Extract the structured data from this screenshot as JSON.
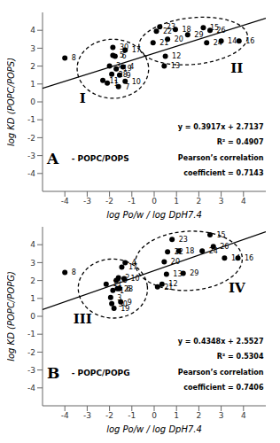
{
  "chart_data": [
    {
      "type": "scatter",
      "title": "A",
      "subtitle": "- POPC/POPS",
      "x_label": "log Po/w / log DpH7.4",
      "y_label": "log KD (POPC/POPS)",
      "xlim": [
        -5,
        5
      ],
      "ylim": [
        -5,
        5
      ],
      "xticks": [
        -4,
        -3,
        -2,
        -1,
        0,
        1,
        2,
        3,
        4
      ],
      "yticks": [
        -4,
        -3,
        -2,
        -1,
        0,
        1,
        2,
        3,
        4
      ],
      "grid": false,
      "color": "#000000",
      "marker": "circle",
      "labels": [
        "8",
        "11",
        "1",
        "3",
        "28",
        "5",
        "6",
        "19",
        "9",
        "7",
        "4",
        "17",
        "30",
        "10",
        "21",
        "22",
        "23",
        "18",
        "20",
        "12",
        "13",
        "29",
        "15",
        "26",
        "24",
        "14",
        "16"
      ],
      "x": [
        -4.0,
        -2.3,
        -2.1,
        -2.0,
        -1.9,
        -1.85,
        -1.75,
        -1.7,
        -1.55,
        -1.6,
        -1.4,
        -1.3,
        -1.85,
        -1.3,
        -0.05,
        0.1,
        0.25,
        0.95,
        0.6,
        0.5,
        0.45,
        1.5,
        2.2,
        2.5,
        2.35,
        3.0,
        3.8
      ],
      "y": [
        2.45,
        1.2,
        1.05,
        2.0,
        1.55,
        2.6,
        2.55,
        1.85,
        1.5,
        0.85,
        1.95,
        2.9,
        3.05,
        1.15,
        3.3,
        3.95,
        4.2,
        4.05,
        3.5,
        2.55,
        2.0,
        3.75,
        4.15,
        4.0,
        3.3,
        3.4,
        3.4
      ],
      "fit_line": {
        "x": [
          -5,
          5
        ],
        "y": [
          0.7552,
          4.6722
        ],
        "color": "#000000"
      },
      "ellipses": {
        "color": "#000000",
        "line_style": "dashed",
        "shapes": [
          {
            "cx": -1.85,
            "cy": 1.85,
            "rx": 1.6,
            "ry": 1.65,
            "angle": 5
          },
          {
            "cx": 1.75,
            "cy": 3.4,
            "rx": 2.45,
            "ry": 1.3,
            "angle": 8
          }
        ]
      },
      "annotations": [
        {
          "text": "I",
          "x": -3.2,
          "y": 0.2
        },
        {
          "text": "II",
          "x": 3.7,
          "y": 1.9
        }
      ],
      "equation": [
        "y = 0.3917x + 2.7137",
        "R² = 0.4907",
        "Pearson’s correlation",
        "coefficient = 0.7143"
      ]
    },
    {
      "type": "scatter",
      "title": "B",
      "subtitle": "- POPC/POPG",
      "x_label": "log Po/w / log DpH7.4",
      "y_label": "log KD (POPC/POPG)",
      "xlim": [
        -5,
        5
      ],
      "ylim": [
        -5,
        5
      ],
      "xticks": [
        -4,
        -3,
        -2,
        -1,
        0,
        1,
        2,
        3,
        4
      ],
      "yticks": [
        -4,
        -3,
        -2,
        -1,
        0,
        1,
        2,
        3,
        4
      ],
      "grid": false,
      "color": "#000000",
      "marker": "circle",
      "labels": [
        "8",
        "11",
        "3",
        "1",
        "30",
        "19",
        "5",
        "2",
        "28",
        "6",
        "17",
        "4",
        "10",
        "9",
        "21",
        "12",
        "13",
        "20",
        "22",
        "23",
        "18",
        "29",
        "24",
        "15",
        "26",
        "14",
        "16"
      ],
      "x": [
        -4.0,
        -2.15,
        -1.95,
        -1.85,
        -1.9,
        -1.8,
        -1.7,
        -1.6,
        -1.65,
        -1.55,
        -1.45,
        -1.3,
        -1.35,
        -1.5,
        0.15,
        0.35,
        0.55,
        0.45,
        0.6,
        0.8,
        1.1,
        1.3,
        2.15,
        2.5,
        2.65,
        3.15,
        3.75
      ],
      "y": [
        2.45,
        1.8,
        1.05,
        1.45,
        0.7,
        0.45,
        2.0,
        2.15,
        1.55,
        1.55,
        2.75,
        3.0,
        2.1,
        0.8,
        1.65,
        1.8,
        2.35,
        3.05,
        3.6,
        4.3,
        3.65,
        2.4,
        3.65,
        4.55,
        3.9,
        3.25,
        3.25
      ],
      "fit_line": {
        "x": [
          -5,
          5
        ],
        "y": [
          0.3787,
          4.7267
        ],
        "color": "#000000"
      },
      "ellipses": {
        "color": "#000000",
        "line_style": "dashed",
        "shapes": [
          {
            "cx": -1.85,
            "cy": 1.55,
            "rx": 1.55,
            "ry": 1.65,
            "angle": 5
          },
          {
            "cx": 1.55,
            "cy": 3.1,
            "rx": 2.4,
            "ry": 1.65,
            "angle": 5
          }
        ]
      },
      "annotations": [
        {
          "text": "III",
          "x": -3.2,
          "y": -0.15
        },
        {
          "text": "IV",
          "x": 3.7,
          "y": 1.6
        }
      ],
      "equation": [
        "y = 0.4348x + 2.5527",
        "R² = 0.5304",
        "Pearson’s correlation",
        "coefficient = 0.7406"
      ]
    }
  ]
}
